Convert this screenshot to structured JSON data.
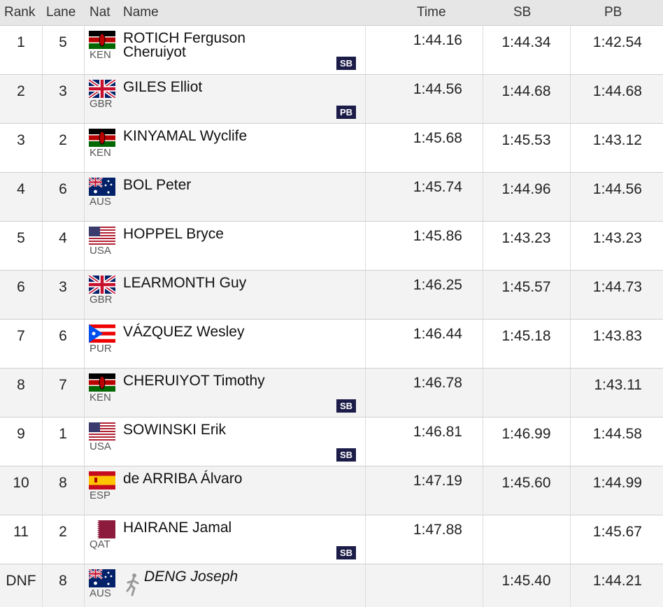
{
  "table": {
    "header": [
      "Rank",
      "Lane",
      "Nat",
      "Name",
      "Time",
      "SB",
      "PB"
    ],
    "rows": [
      {
        "rank": "1",
        "lane": "5",
        "nat": "KEN",
        "name": "ROTICH Ferguson Cheruiyot",
        "time": "1:44.16",
        "sb": "1:44.34",
        "pb": "1:42.54",
        "badge": "SB"
      },
      {
        "rank": "2",
        "lane": "3",
        "nat": "GBR",
        "name": "GILES Elliot",
        "time": "1:44.56",
        "sb": "1:44.68",
        "pb": "1:44.68",
        "badge": "PB"
      },
      {
        "rank": "3",
        "lane": "2",
        "nat": "KEN",
        "name": "KINYAMAL Wyclife",
        "time": "1:45.68",
        "sb": "1:45.53",
        "pb": "1:43.12"
      },
      {
        "rank": "4",
        "lane": "6",
        "nat": "AUS",
        "name": "BOL Peter",
        "time": "1:45.74",
        "sb": "1:44.96",
        "pb": "1:44.56"
      },
      {
        "rank": "5",
        "lane": "4",
        "nat": "USA",
        "name": "HOPPEL Bryce",
        "time": "1:45.86",
        "sb": "1:43.23",
        "pb": "1:43.23"
      },
      {
        "rank": "6",
        "lane": "3",
        "nat": "GBR",
        "name": "LEARMONTH Guy",
        "time": "1:46.25",
        "sb": "1:45.57",
        "pb": "1:44.73"
      },
      {
        "rank": "7",
        "lane": "6",
        "nat": "PUR",
        "name": "VÁZQUEZ Wesley",
        "time": "1:46.44",
        "sb": "1:45.18",
        "pb": "1:43.83"
      },
      {
        "rank": "8",
        "lane": "7",
        "nat": "KEN",
        "name": "CHERUIYOT Timothy",
        "time": "1:46.78",
        "pb": "1:43.11",
        "badge": "SB"
      },
      {
        "rank": "9",
        "lane": "1",
        "nat": "USA",
        "name": "SOWINSKI Erik",
        "time": "1:46.81",
        "sb": "1:46.99",
        "pb": "1:44.58",
        "badge": "SB"
      },
      {
        "rank": "10",
        "lane": "8",
        "nat": "ESP",
        "name": "de ARRIBA Álvaro",
        "time": "1:47.19",
        "sb": "1:45.60",
        "pb": "1:44.99"
      },
      {
        "rank": "11",
        "lane": "2",
        "nat": "QAT",
        "name": "HAIRANE Jamal",
        "time": "1:47.88",
        "pb": "1:45.67",
        "badge": "SB"
      },
      {
        "rank": "DNF",
        "lane": "8",
        "nat": "AUS",
        "name": "DENG Joseph",
        "sb": "1:45.40",
        "pb": "1:44.21"
      }
    ]
  }
}
